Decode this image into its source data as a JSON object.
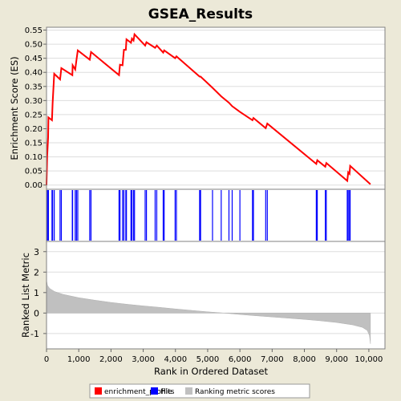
{
  "chart_data": {
    "title": "GSEA_Results",
    "x_axis": {
      "label": "Rank in Ordered Dataset",
      "range": [
        0,
        10500
      ],
      "ticks": [
        0,
        1000,
        2000,
        3000,
        4000,
        5000,
        6000,
        7000,
        8000,
        9000,
        10000
      ],
      "tick_labels": [
        "0",
        "1,000",
        "2,000",
        "3,000",
        "4,000",
        "5,000",
        "6,000",
        "7,000",
        "8,000",
        "9,000",
        "10,000"
      ]
    },
    "panels": [
      {
        "id": "enrichment",
        "type": "line",
        "ylabel": "Enrichment Score (ES)",
        "ylim": [
          -0.015,
          0.56
        ],
        "yticks": [
          0.0,
          0.05,
          0.1,
          0.15,
          0.2,
          0.25,
          0.3,
          0.35,
          0.4,
          0.45,
          0.5,
          0.55
        ],
        "ytick_labels": [
          "0.00",
          "0.05",
          "0.10",
          "0.15",
          "0.20",
          "0.25",
          "0.30",
          "0.35",
          "0.40",
          "0.45",
          "0.50",
          "0.55"
        ],
        "grid": true,
        "color": "#ff0000",
        "points": [
          [
            0,
            0.0
          ],
          [
            20,
            0.1
          ],
          [
            50,
            0.17
          ],
          [
            60,
            0.24
          ],
          [
            170,
            0.23
          ],
          [
            190,
            0.29
          ],
          [
            240,
            0.395
          ],
          [
            420,
            0.375
          ],
          [
            460,
            0.415
          ],
          [
            800,
            0.39
          ],
          [
            810,
            0.425
          ],
          [
            890,
            0.41
          ],
          [
            930,
            0.445
          ],
          [
            970,
            0.478
          ],
          [
            1340,
            0.445
          ],
          [
            1380,
            0.472
          ],
          [
            2250,
            0.39
          ],
          [
            2280,
            0.427
          ],
          [
            2360,
            0.425
          ],
          [
            2400,
            0.48
          ],
          [
            2460,
            0.48
          ],
          [
            2480,
            0.517
          ],
          [
            2620,
            0.505
          ],
          [
            2650,
            0.52
          ],
          [
            2700,
            0.513
          ],
          [
            2730,
            0.535
          ],
          [
            3060,
            0.495
          ],
          [
            3100,
            0.507
          ],
          [
            3370,
            0.487
          ],
          [
            3420,
            0.495
          ],
          [
            3620,
            0.47
          ],
          [
            3650,
            0.478
          ],
          [
            3990,
            0.45
          ],
          [
            4030,
            0.457
          ],
          [
            4750,
            0.385
          ],
          [
            4780,
            0.385
          ],
          [
            5150,
            0.345
          ],
          [
            5420,
            0.315
          ],
          [
            5660,
            0.292
          ],
          [
            5760,
            0.28
          ],
          [
            6000,
            0.26
          ],
          [
            6390,
            0.23
          ],
          [
            6420,
            0.238
          ],
          [
            6800,
            0.202
          ],
          [
            6850,
            0.218
          ],
          [
            8370,
            0.075
          ],
          [
            8400,
            0.088
          ],
          [
            8650,
            0.065
          ],
          [
            8680,
            0.078
          ],
          [
            9330,
            0.015
          ],
          [
            9360,
            0.045
          ],
          [
            9400,
            0.04
          ],
          [
            9420,
            0.068
          ],
          [
            10050,
            0.003
          ]
        ]
      },
      {
        "id": "hits",
        "type": "rug",
        "color": "#0000ff",
        "positions": [
          20,
          50,
          60,
          170,
          190,
          240,
          420,
          460,
          800,
          810,
          890,
          930,
          970,
          1340,
          1380,
          2250,
          2280,
          2360,
          2400,
          2460,
          2480,
          2620,
          2650,
          2700,
          2730,
          3060,
          3100,
          3370,
          3420,
          3620,
          3650,
          3990,
          4030,
          4750,
          4780,
          5150,
          5420,
          5660,
          5760,
          6000,
          6390,
          6420,
          6800,
          6850,
          8370,
          8400,
          8650,
          8680,
          9330,
          9360,
          9400,
          9420
        ]
      },
      {
        "id": "ranking",
        "type": "area",
        "ylabel": "Ranked List Metric",
        "ylim": [
          -1.75,
          3.5
        ],
        "yticks": [
          -1,
          0,
          1,
          2,
          3
        ],
        "ytick_labels": [
          "-1",
          "0",
          "1",
          "2",
          "3"
        ],
        "grid": true,
        "color": "#c0c0c0",
        "points": [
          [
            0,
            1.6
          ],
          [
            30,
            1.35
          ],
          [
            100,
            1.2
          ],
          [
            250,
            1.05
          ],
          [
            500,
            0.92
          ],
          [
            1000,
            0.75
          ],
          [
            1500,
            0.63
          ],
          [
            2000,
            0.52
          ],
          [
            2500,
            0.43
          ],
          [
            3000,
            0.35
          ],
          [
            3500,
            0.28
          ],
          [
            4000,
            0.2
          ],
          [
            4500,
            0.13
          ],
          [
            5000,
            0.06
          ],
          [
            5500,
            0.0
          ],
          [
            6000,
            -0.07
          ],
          [
            6500,
            -0.13
          ],
          [
            7000,
            -0.19
          ],
          [
            7500,
            -0.25
          ],
          [
            8000,
            -0.31
          ],
          [
            8500,
            -0.38
          ],
          [
            9000,
            -0.46
          ],
          [
            9500,
            -0.58
          ],
          [
            9800,
            -0.7
          ],
          [
            9950,
            -0.85
          ],
          [
            10020,
            -1.1
          ],
          [
            10050,
            -1.5
          ]
        ]
      }
    ],
    "legend": {
      "position": "bottom",
      "entries": [
        {
          "label": "enrichment_profile",
          "color": "#ff0000"
        },
        {
          "label": "Hits",
          "color": "#0000ff"
        },
        {
          "label": "Ranking metric scores",
          "color": "#c0c0c0"
        }
      ]
    }
  }
}
